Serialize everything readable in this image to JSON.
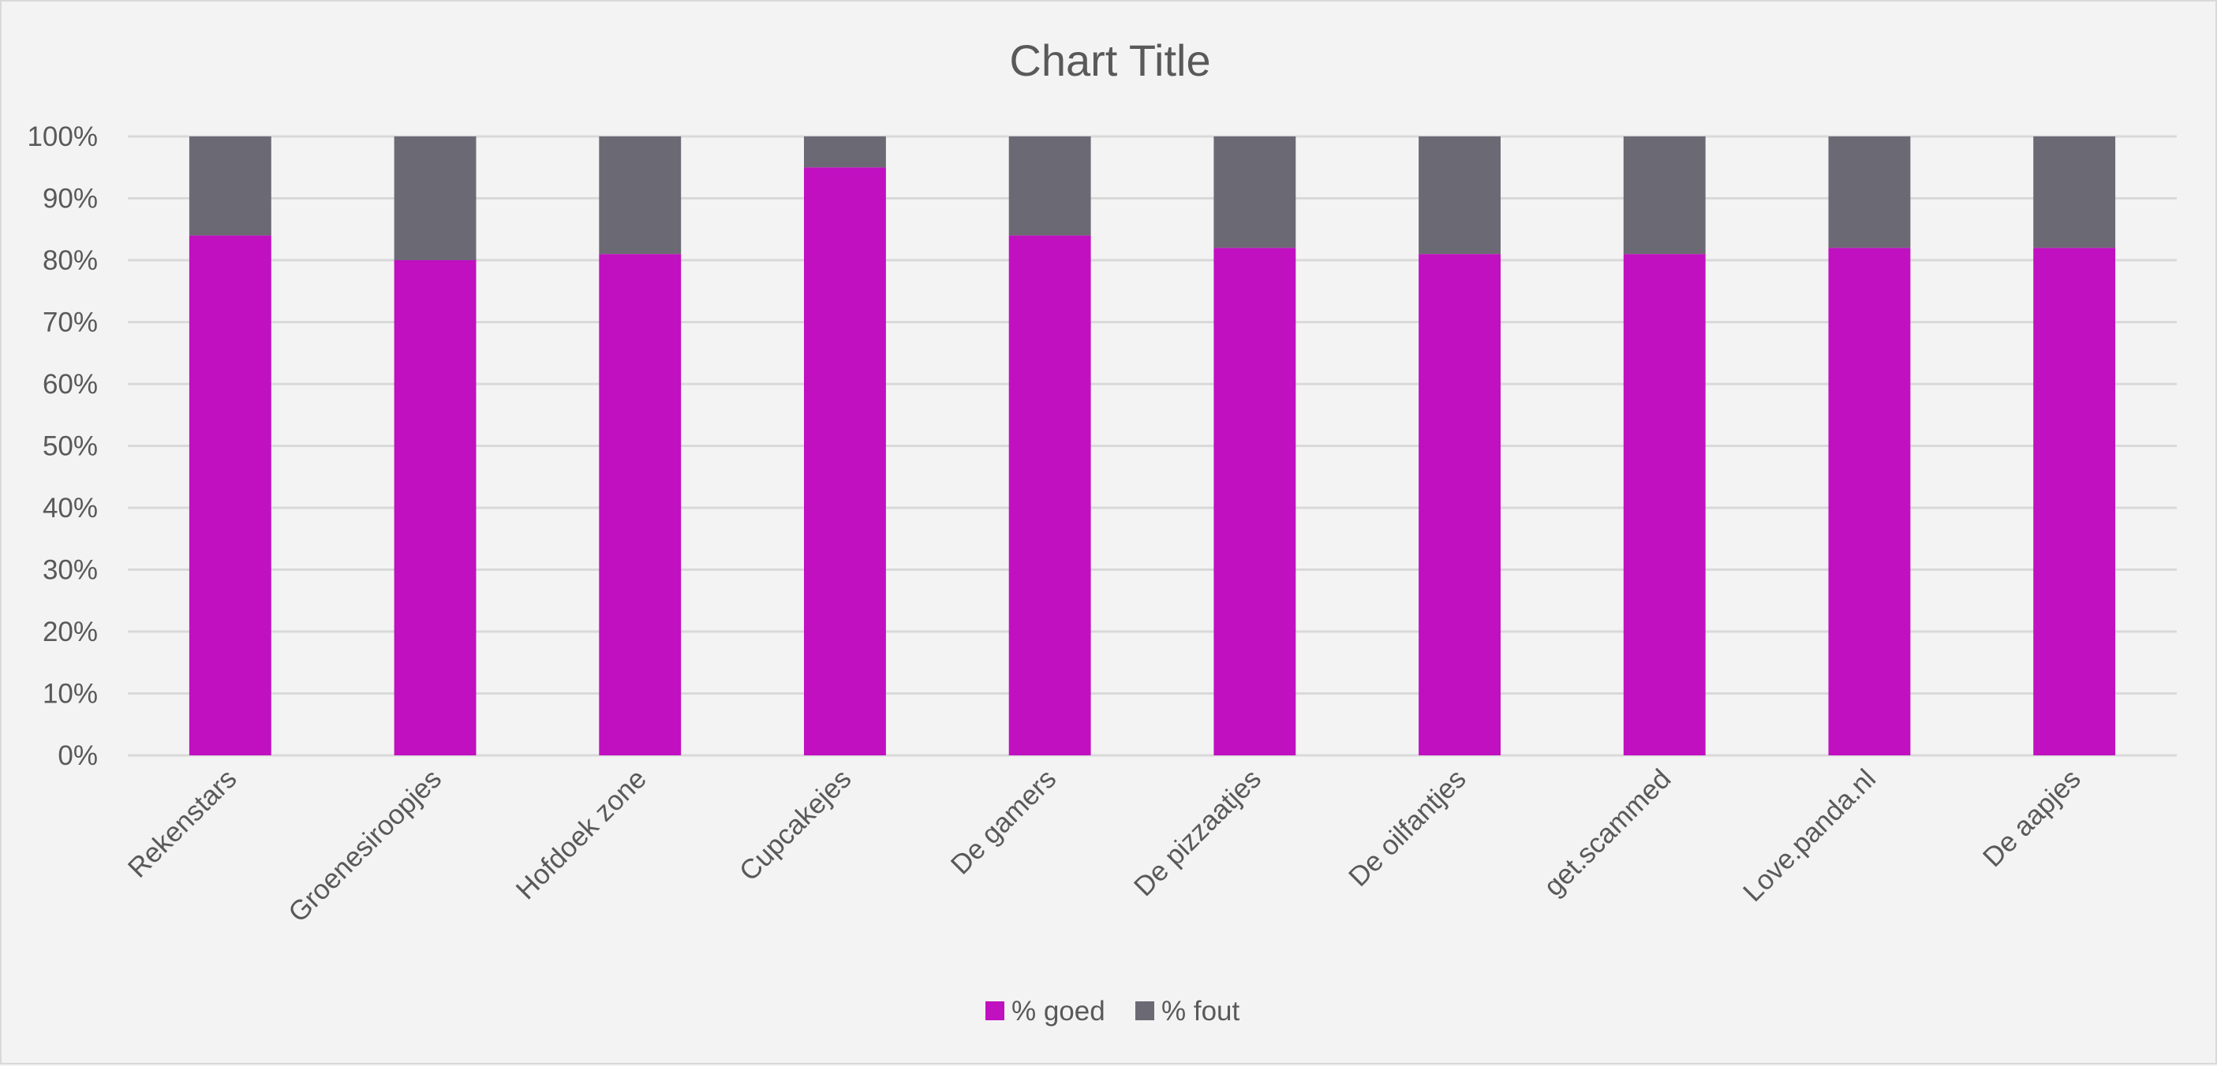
{
  "chart_data": {
    "type": "bar",
    "stacked": true,
    "percent_stacked": true,
    "title": "Chart Title",
    "xlabel": "",
    "ylabel": "",
    "ylim": [
      0,
      100
    ],
    "yticks": [
      "0%",
      "10%",
      "20%",
      "30%",
      "40%",
      "50%",
      "60%",
      "70%",
      "80%",
      "90%",
      "100%"
    ],
    "categories": [
      "Rekenstars",
      "Groenesiroopjes",
      "Hofdoek zone",
      "Cupcakejes",
      "De gamers",
      "De pizzaatjes",
      "De oilfantjes",
      "get.scammed",
      "Love.panda.nl",
      "De aapjes"
    ],
    "series": [
      {
        "name": "% goed",
        "color": "#c010c0",
        "values": [
          84,
          80,
          81,
          95,
          84,
          82,
          81,
          81,
          82,
          82
        ]
      },
      {
        "name": "% fout",
        "color": "#6b6a74",
        "values": [
          16,
          20,
          19,
          5,
          16,
          18,
          19,
          19,
          18,
          18
        ]
      }
    ],
    "grid": true,
    "legend_position": "bottom",
    "colors": {
      "background": "#f3f3f3",
      "gridline": "#d9d9d9",
      "text": "#595959"
    }
  }
}
